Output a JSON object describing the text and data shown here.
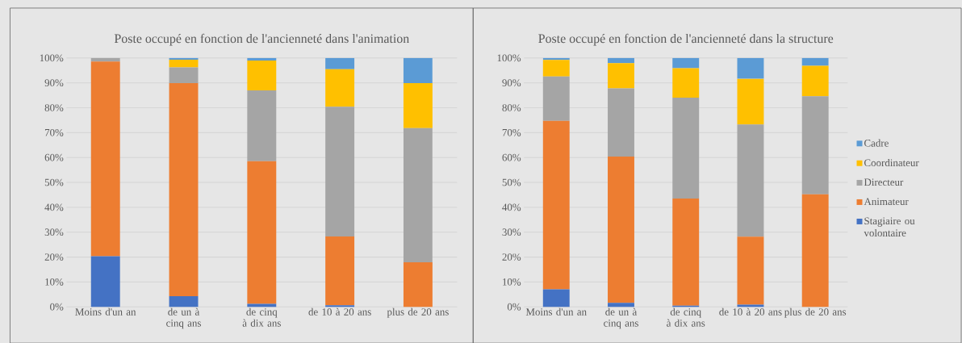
{
  "chart_data": [
    {
      "type": "bar",
      "stacked": true,
      "title": "Poste occupé en fonction de l'ancienneté dans l'animation",
      "categories": [
        "Moins d'un an",
        "de un à cinq ans",
        "de cinq à dix ans",
        "de 10 à 20 ans",
        "plus de 20 ans"
      ],
      "series": [
        {
          "color": "#4472c4",
          "values": [
            20.3,
            4.3,
            1.2,
            0.6,
            0
          ]
        },
        {
          "color": "#ed7d31",
          "values": [
            78.3,
            85.6,
            57.3,
            27.7,
            17.9
          ]
        },
        {
          "color": "#a5a5a5",
          "values": [
            1.4,
            6.3,
            28.5,
            52.1,
            53.9
          ]
        },
        {
          "color": "#ffc000",
          "values": [
            0,
            3.1,
            12.0,
            15.1,
            18.1
          ]
        },
        {
          "color": "#5b9bd5",
          "values": [
            0,
            0.7,
            1.0,
            4.5,
            10.1
          ]
        }
      ],
      "ylim": [
        0,
        100
      ],
      "yticks": [
        {
          "value": 0,
          "label": "0%"
        },
        {
          "value": 10,
          "label": "10%"
        },
        {
          "value": 20,
          "label": "20%"
        },
        {
          "value": 30,
          "label": "30%"
        },
        {
          "value": 40,
          "label": "40%"
        },
        {
          "value": 50,
          "label": "50%"
        },
        {
          "value": 60,
          "label": "60%"
        },
        {
          "value": 70,
          "label": "70%"
        },
        {
          "value": 80,
          "label": "80%"
        },
        {
          "value": 90,
          "label": "90%"
        },
        {
          "value": 100,
          "label": "100%"
        }
      ],
      "grid": "y"
    },
    {
      "type": "bar",
      "stacked": true,
      "title": "Poste occupé en fonction de l'ancienneté dans la structure",
      "categories": [
        "Moins d'un an",
        "de un à cinq ans",
        "de cinq à dix ans",
        "de 10 à 20 ans",
        "plus de 20 ans"
      ],
      "series": [
        {
          "name": "Stagiaire ou volontaire",
          "color": "#4472c4",
          "values": [
            7.0,
            1.6,
            0.5,
            0.9,
            0
          ]
        },
        {
          "name": "Animateur",
          "color": "#ed7d31",
          "values": [
            67.7,
            58.8,
            43.0,
            27.3,
            45.2
          ]
        },
        {
          "name": "Directeur",
          "color": "#a5a5a5",
          "values": [
            17.9,
            27.4,
            40.6,
            45.1,
            39.4
          ]
        },
        {
          "name": "Coordinateur",
          "color": "#ffc000",
          "values": [
            6.6,
            10.1,
            11.8,
            18.3,
            12.3
          ]
        },
        {
          "name": "Cadre",
          "color": "#5b9bd5",
          "values": [
            0.8,
            2.1,
            4.1,
            8.4,
            3.1
          ]
        }
      ],
      "ylim": [
        0,
        100
      ],
      "yticks": [
        {
          "value": 0,
          "label": "0%"
        },
        {
          "value": 10,
          "label": "10%"
        },
        {
          "value": 20,
          "label": "20%"
        },
        {
          "value": 30,
          "label": "30%"
        },
        {
          "value": 40,
          "label": "40%"
        },
        {
          "value": 50,
          "label": "50%"
        },
        {
          "value": 60,
          "label": "60%"
        },
        {
          "value": 70,
          "label": "70%"
        },
        {
          "value": 80,
          "label": "80%"
        },
        {
          "value": 90,
          "label": "90%"
        },
        {
          "value": 100,
          "label": "100%"
        }
      ],
      "grid": "y",
      "legend": "right"
    }
  ]
}
